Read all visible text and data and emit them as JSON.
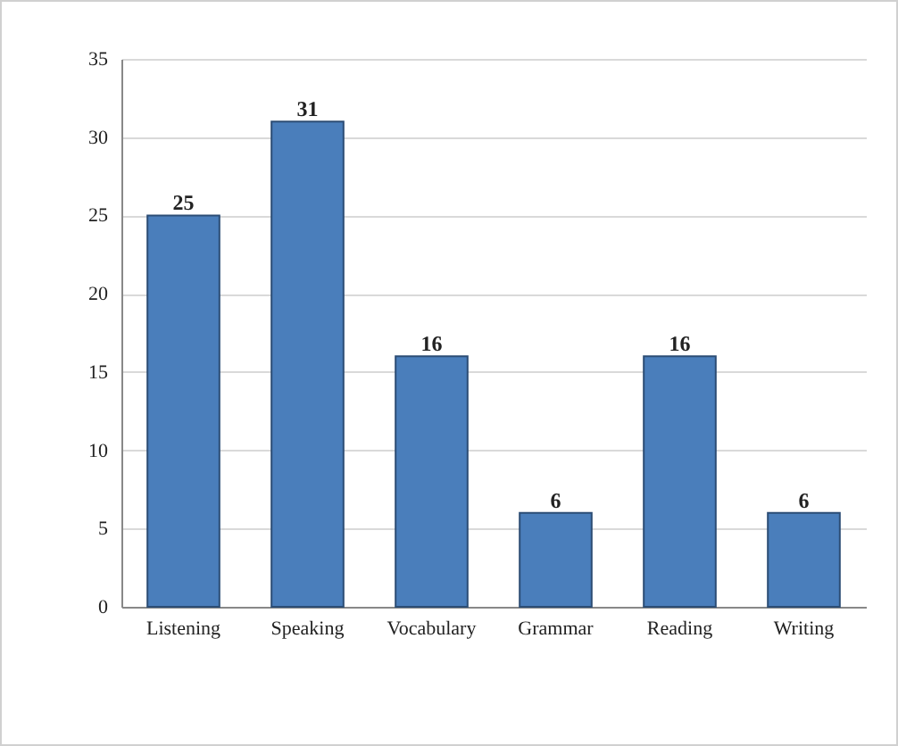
{
  "chart_data": {
    "type": "bar",
    "categories": [
      "Listening",
      "Speaking",
      "Vocabulary",
      "Grammar",
      "Reading",
      "Writing"
    ],
    "values": [
      25,
      31,
      16,
      6,
      16,
      6
    ],
    "color": "#4a7ebb",
    "ylim": [
      0,
      35
    ],
    "yticks": [
      0,
      5,
      10,
      15,
      20,
      25,
      30,
      35
    ],
    "grid": "y",
    "data_labels": true
  }
}
